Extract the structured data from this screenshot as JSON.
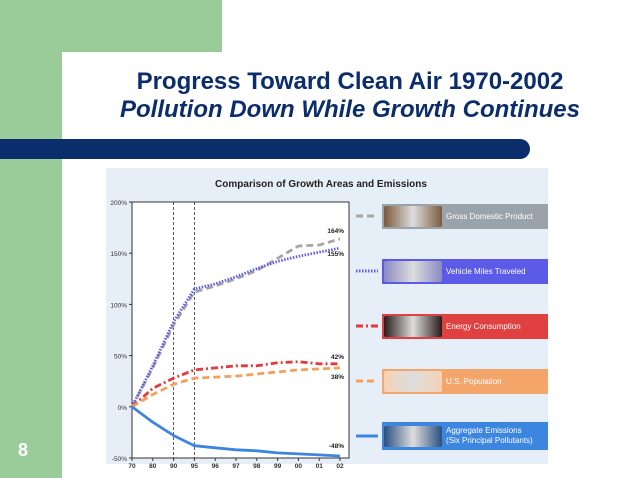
{
  "slide": {
    "title": "Progress Toward Clean Air 1970-2002",
    "subtitle": "Pollution Down While Growth Continues",
    "page_number": "8"
  },
  "chart_data": {
    "type": "line",
    "title": "Comparison of Growth Areas and Emissions",
    "x_tick_labels": [
      "70",
      "80",
      "90",
      "95",
      "96",
      "97",
      "98",
      "99",
      "00",
      "01",
      "02"
    ],
    "y_tick_labels": [
      "200%",
      "150%",
      "100%",
      "50%",
      "0%",
      "-50%"
    ],
    "ylim": [
      -50,
      200
    ],
    "reference_lines_at": [
      "90",
      "95"
    ],
    "series": [
      {
        "name": "Gross Domestic Product",
        "color": "#a6a6a6",
        "style": "dashed",
        "values": [
          0,
          38,
          80,
          112,
          118,
          125,
          133,
          145,
          157,
          158,
          164
        ],
        "end_label": "164%"
      },
      {
        "name": "Vehicle Miles Traveled",
        "color": "#5c5ce6",
        "style": "dotted",
        "values": [
          0,
          40,
          83,
          115,
          120,
          127,
          135,
          142,
          147,
          151,
          155
        ],
        "end_label": "155%"
      },
      {
        "name": "Energy Consumption",
        "color": "#e23b3b",
        "style": "dashdot",
        "values": [
          0,
          18,
          28,
          36,
          38,
          40,
          40,
          43,
          44,
          42,
          42
        ],
        "end_label": "42%"
      },
      {
        "name": "U.S. Population",
        "color": "#f5a05a",
        "style": "dashed",
        "values": [
          0,
          12,
          22,
          28,
          29,
          30,
          32,
          34,
          36,
          37,
          38
        ],
        "end_label": "38%"
      },
      {
        "name": "Aggregate Emissions\n(Six Principal Pollutants)",
        "color": "#3d86e0",
        "style": "solid",
        "values": [
          0,
          -15,
          -28,
          -38,
          -40,
          -42,
          -43,
          -45,
          -46,
          -47,
          -48
        ],
        "end_label": "-48%"
      }
    ],
    "legend": [
      {
        "label": "Gross Domestic Product",
        "color": "#9ba3aa",
        "thumb": "#7b5a3c"
      },
      {
        "label": "Vehicle Miles Traveled",
        "color": "#5b5be8",
        "thumb": "#8a8ac2"
      },
      {
        "label": "Energy Consumption",
        "color": "#e04040",
        "thumb": "#2a1b1b"
      },
      {
        "label": "U.S. Population",
        "color": "#f4a56a",
        "thumb": "#f4d2b6"
      },
      {
        "label_line1": "Aggregate Emissions",
        "label_line2": "(Six Principal Pollutants)",
        "color": "#3d86e0",
        "thumb": "#2a4f80"
      }
    ]
  }
}
